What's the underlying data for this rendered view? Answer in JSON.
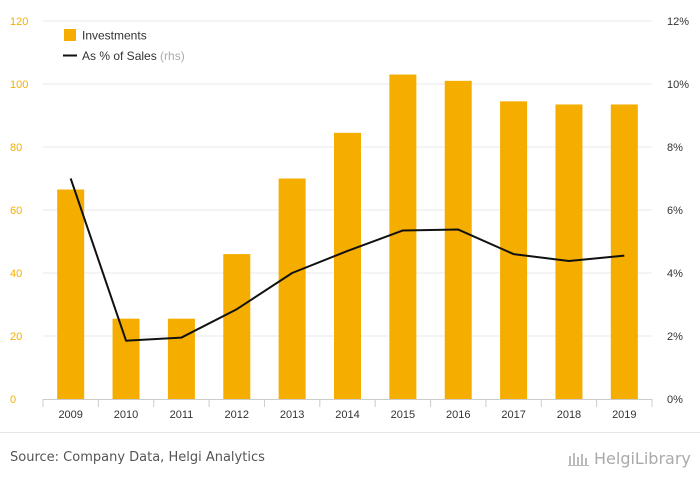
{
  "chart_data": {
    "type": "bar+line",
    "categories": [
      "2009",
      "2010",
      "2011",
      "2012",
      "2013",
      "2014",
      "2015",
      "2016",
      "2017",
      "2018",
      "2019"
    ],
    "series": [
      {
        "name": "Investments",
        "type": "bar",
        "axis": "left",
        "values": [
          66.5,
          25.5,
          25.5,
          46,
          70,
          84.5,
          103,
          101,
          94.5,
          93.5,
          93.5
        ]
      },
      {
        "name": "As % of Sales",
        "type": "line",
        "axis": "right",
        "values": [
          7.0,
          1.85,
          1.95,
          2.85,
          4.0,
          4.7,
          5.35,
          5.38,
          4.6,
          4.38,
          4.55
        ]
      }
    ],
    "legend": {
      "items": [
        {
          "label": "Investments",
          "suffix": ""
        },
        {
          "label": "As % of Sales",
          "suffix": "(rhs)"
        }
      ],
      "placement": "top-left"
    },
    "yleft": {
      "ticks": [
        "0",
        "20",
        "40",
        "60",
        "80",
        "100",
        "120"
      ],
      "lim": [
        0,
        120
      ]
    },
    "yright": {
      "ticks": [
        "0%",
        "2%",
        "4%",
        "6%",
        "8%",
        "10%",
        "12%"
      ],
      "lim": [
        0,
        12
      ]
    },
    "grid": true,
    "colors": {
      "bar": "#f5ae00",
      "line": "#111111",
      "leftTicks": "#f5ae00",
      "grid": "#e8e8e8"
    }
  },
  "footer": {
    "source": "Source: Company Data, Helgi Analytics",
    "brand": "HelgiLibrary"
  }
}
